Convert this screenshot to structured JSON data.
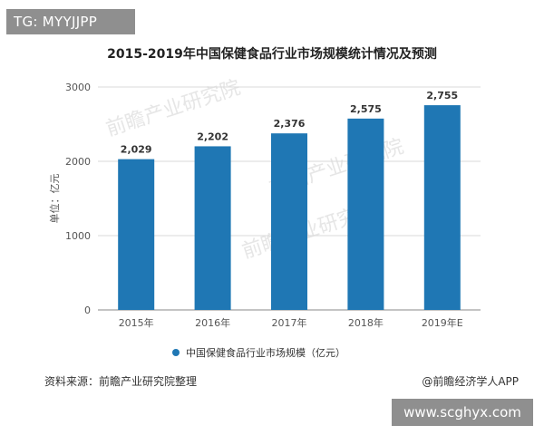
{
  "overlay": {
    "top_tag": "TG: MYYJJPP",
    "bottom_site": "www.scghyx.com"
  },
  "watermark_text": "前瞻产业研究院",
  "source_note": "资料来源：前瞻产业研究院整理",
  "credit_note": "@前瞻经济学人APP",
  "colors": {
    "bar": "#1f77b4",
    "grid": "#d9d9d9",
    "axis": "#888888"
  },
  "chart_data": {
    "type": "bar",
    "title": "2015-2019年中国保健食品行业市场规模统计情况及预测",
    "ylabel": "单位：亿元",
    "xlabel": "",
    "categories": [
      "2015年",
      "2016年",
      "2017年",
      "2018年",
      "2019年E"
    ],
    "series": [
      {
        "name": "中国保健食品行业市场规模（亿元）",
        "values": [
          2029,
          2202,
          2376,
          2575,
          2755
        ],
        "labels": [
          "2,029",
          "2,202",
          "2,376",
          "2,575",
          "2,755"
        ]
      }
    ],
    "ylim": [
      0,
      3000
    ],
    "yticks": [
      0,
      1000,
      2000,
      3000
    ],
    "grid": true,
    "legend_position": "bottom"
  }
}
